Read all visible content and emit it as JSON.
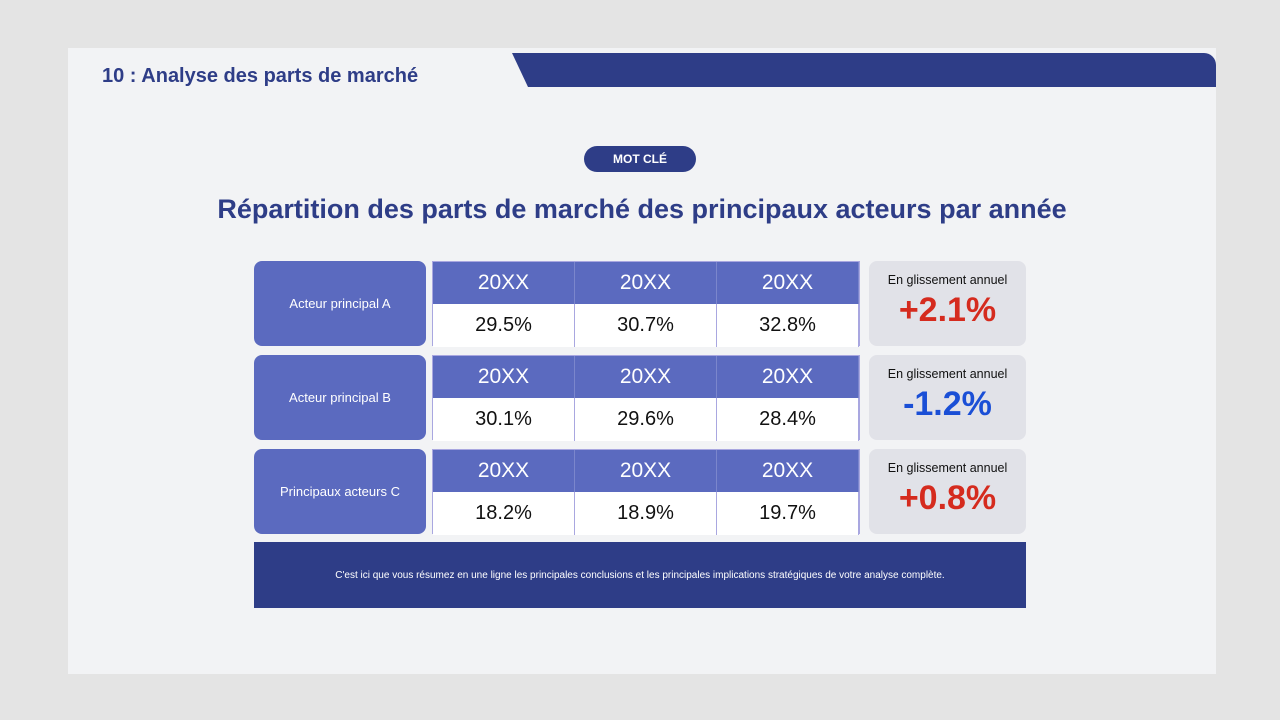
{
  "slide_title": "10 : Analyse des parts de marché",
  "keyword_badge": "MOT CLÉ",
  "heading": "Répartition des parts de marché des principaux acteurs par année",
  "colors": {
    "primary": "#2e3d87",
    "accent": "#5b6abf",
    "positive": "#d52b1e",
    "negative": "#1a4fd6"
  },
  "rows": [
    {
      "label": "Acteur principal A",
      "years": [
        "20XX",
        "20XX",
        "20XX"
      ],
      "values": [
        "29.5%",
        "30.7%",
        "32.8%"
      ],
      "yoy_label": "En glissement annuel",
      "yoy": "+2.1%"
    },
    {
      "label": "Acteur principal B",
      "years": [
        "20XX",
        "20XX",
        "20XX"
      ],
      "values": [
        "30.1%",
        "29.6%",
        "28.4%"
      ],
      "yoy_label": "En glissement annuel",
      "yoy": "-1.2%"
    },
    {
      "label": "Principaux acteurs C",
      "years": [
        "20XX",
        "20XX",
        "20XX"
      ],
      "values": [
        "18.2%",
        "18.9%",
        "19.7%"
      ],
      "yoy_label": "En glissement annuel",
      "yoy": "+0.8%"
    }
  ],
  "summary": "C'est ici que vous résumez en une ligne les principales conclusions et les principales implications stratégiques de votre analyse complète."
}
